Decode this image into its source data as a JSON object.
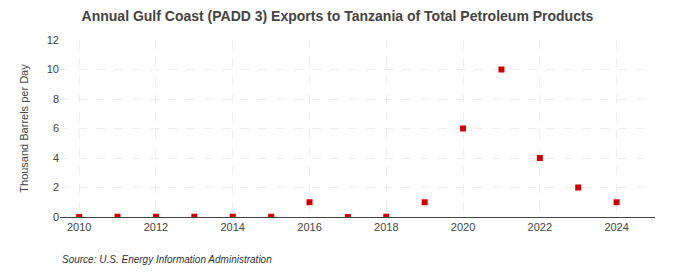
{
  "chart_data": {
    "type": "scatter",
    "title": "Annual Gulf Coast (PADD 3) Exports to Tanzania of Total Petroleum Products",
    "ylabel": "Thousand Barrels per Day",
    "annotations": [
      "Source: U.S. Energy Information Administration"
    ],
    "x": [
      2010,
      2011,
      2012,
      2013,
      2014,
      2015,
      2016,
      2017,
      2018,
      2019,
      2020,
      2021,
      2022,
      2023,
      2024
    ],
    "values": [
      0.0,
      0.02,
      0.02,
      0.02,
      0.02,
      0.02,
      1.0,
      0.0,
      0.02,
      1.0,
      6.0,
      10.0,
      4.0,
      2.0,
      1.0
    ],
    "color": "#cc0000",
    "marker": "square",
    "xlim": [
      2009.5,
      2025.0
    ],
    "ylim": [
      0,
      12
    ],
    "xticks": [
      2010,
      2012,
      2014,
      2016,
      2018,
      2020,
      2022,
      2024
    ],
    "yticks": [
      0,
      2,
      4,
      6,
      8,
      10,
      12
    ],
    "grid": true
  }
}
